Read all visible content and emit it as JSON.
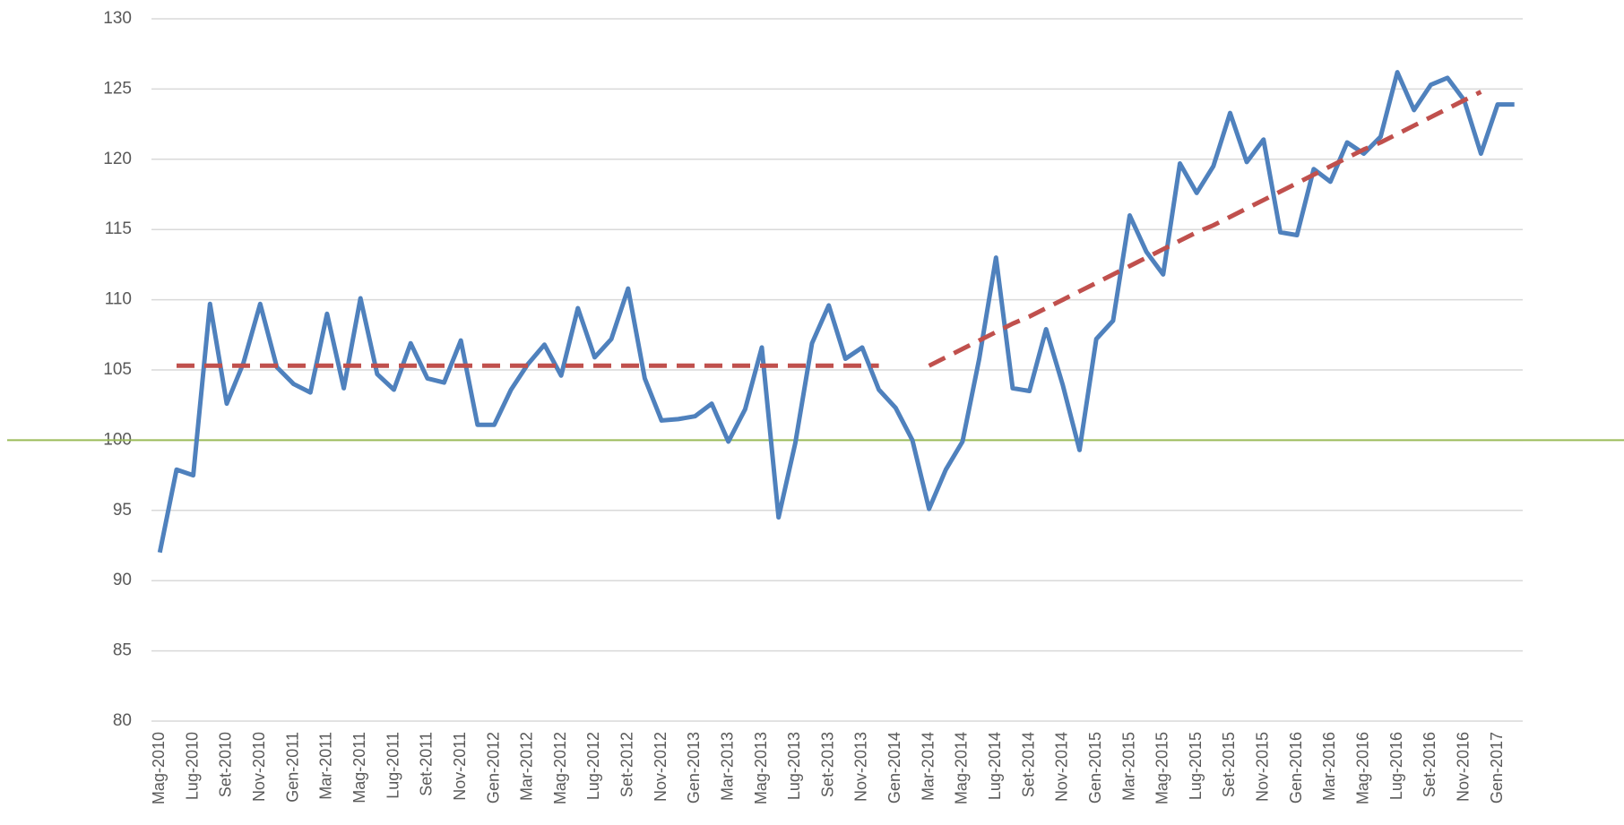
{
  "chart_data": {
    "type": "line",
    "categories": [
      "Mag-2010",
      null,
      "Lug-2010",
      null,
      "Set-2010",
      null,
      "Nov-2010",
      null,
      "Gen-2011",
      null,
      "Mar-2011",
      null,
      "Mag-2011",
      null,
      "Lug-2011",
      null,
      "Set-2011",
      null,
      "Nov-2011",
      null,
      "Gen-2012",
      null,
      "Mar-2012",
      null,
      "Mag-2012",
      null,
      "Lug-2012",
      null,
      "Set-2012",
      null,
      "Nov-2012",
      null,
      "Gen-2013",
      null,
      "Mar-2013",
      null,
      "Mag-2013",
      null,
      "Lug-2013",
      null,
      "Set-2013",
      null,
      "Nov-2013",
      null,
      "Gen-2014",
      null,
      "Mar-2014",
      null,
      "Mag-2014",
      null,
      "Lug-2014",
      null,
      "Set-2014",
      null,
      "Nov-2014",
      null,
      "Gen-2015",
      null,
      "Mar-2015",
      null,
      "Mag-2015",
      null,
      "Lug-2015",
      null,
      "Set-2015",
      null,
      "Nov-2015",
      null,
      "Gen-2016",
      null,
      "Mar-2016",
      null,
      "Mag-2016",
      null,
      "Lug-2016",
      null,
      "Set-2016",
      null,
      "Nov-2016",
      null,
      "Gen-2017",
      null
    ],
    "series": [
      {
        "color": "#4f81bd",
        "dash": false,
        "values": [
          92,
          97.9,
          97.5,
          109.7,
          102.6,
          105.5,
          109.7,
          105.2,
          104,
          103.4,
          109,
          103.7,
          110.1,
          104.7,
          103.6,
          106.9,
          104.4,
          104.1,
          107.1,
          101.1,
          101.1,
          103.6,
          105.4,
          106.8,
          104.6,
          109.4,
          105.9,
          107.2,
          110.8,
          104.4,
          101.4,
          101.5,
          101.7,
          102.6,
          99.9,
          102.2,
          106.6,
          94.5,
          99.8,
          106.9,
          109.6,
          105.8,
          106.6,
          103.6,
          102.3,
          100,
          95.1,
          97.9,
          99.9,
          105.8,
          113,
          103.7,
          103.5,
          107.9,
          103.9,
          99.3,
          107.2,
          108.5,
          116,
          113.4,
          111.8,
          119.7,
          117.6,
          119.5,
          123.3,
          119.8,
          121.4,
          114.8,
          114.6,
          119.3,
          118.4,
          121.2,
          120.4,
          121.6,
          126.2,
          123.5,
          125.3,
          125.8,
          124.2,
          120.4,
          123.9,
          123.9
        ]
      },
      {
        "color": "#c0504d",
        "dash": true,
        "values": [
          null,
          105.3,
          105.3,
          105.3,
          105.3,
          105.3,
          105.3,
          105.3,
          105.3,
          105.3,
          105.3,
          105.3,
          105.3,
          105.3,
          105.3,
          105.3,
          105.3,
          105.3,
          105.3,
          105.3,
          105.3,
          105.3,
          105.3,
          105.3,
          105.3,
          105.3,
          105.3,
          105.3,
          105.3,
          105.3,
          105.3,
          105.3,
          105.3,
          105.3,
          105.3,
          105.3,
          105.3,
          105.3,
          105.3,
          105.3,
          105.3,
          105.3,
          105.3,
          105.3,
          null,
          null,
          null,
          null,
          null,
          null,
          null,
          null,
          null,
          null,
          null,
          null,
          null,
          null,
          null,
          null,
          null,
          null,
          null,
          null,
          null,
          null,
          null,
          null,
          null,
          null,
          null,
          null,
          null,
          null,
          null,
          null,
          null,
          null,
          null,
          null,
          null,
          null
        ]
      },
      {
        "color": "#c0504d",
        "dash": true,
        "values": [
          null,
          null,
          null,
          null,
          null,
          null,
          null,
          null,
          null,
          null,
          null,
          null,
          null,
          null,
          null,
          null,
          null,
          null,
          null,
          null,
          null,
          null,
          null,
          null,
          null,
          null,
          null,
          null,
          null,
          null,
          null,
          null,
          null,
          null,
          null,
          null,
          null,
          null,
          null,
          null,
          null,
          null,
          null,
          null,
          null,
          null,
          105.3,
          105.9,
          106.5,
          107.1,
          107.7,
          108.3,
          108.8,
          109.4,
          110.0,
          110.6,
          111.2,
          111.8,
          112.4,
          113.0,
          113.6,
          114.2,
          114.8,
          115.3,
          115.9,
          116.5,
          117.1,
          117.7,
          118.3,
          118.9,
          119.5,
          120.1,
          120.7,
          121.2,
          121.8,
          122.4,
          123.0,
          123.6,
          124.2,
          124.8,
          null,
          null
        ]
      }
    ],
    "reference_line": {
      "value": 100,
      "color": "#9bbb59"
    },
    "ylim": [
      80,
      130
    ],
    "yticks": [
      80,
      85,
      90,
      95,
      100,
      105,
      110,
      115,
      120,
      125,
      130
    ],
    "grid": true
  }
}
